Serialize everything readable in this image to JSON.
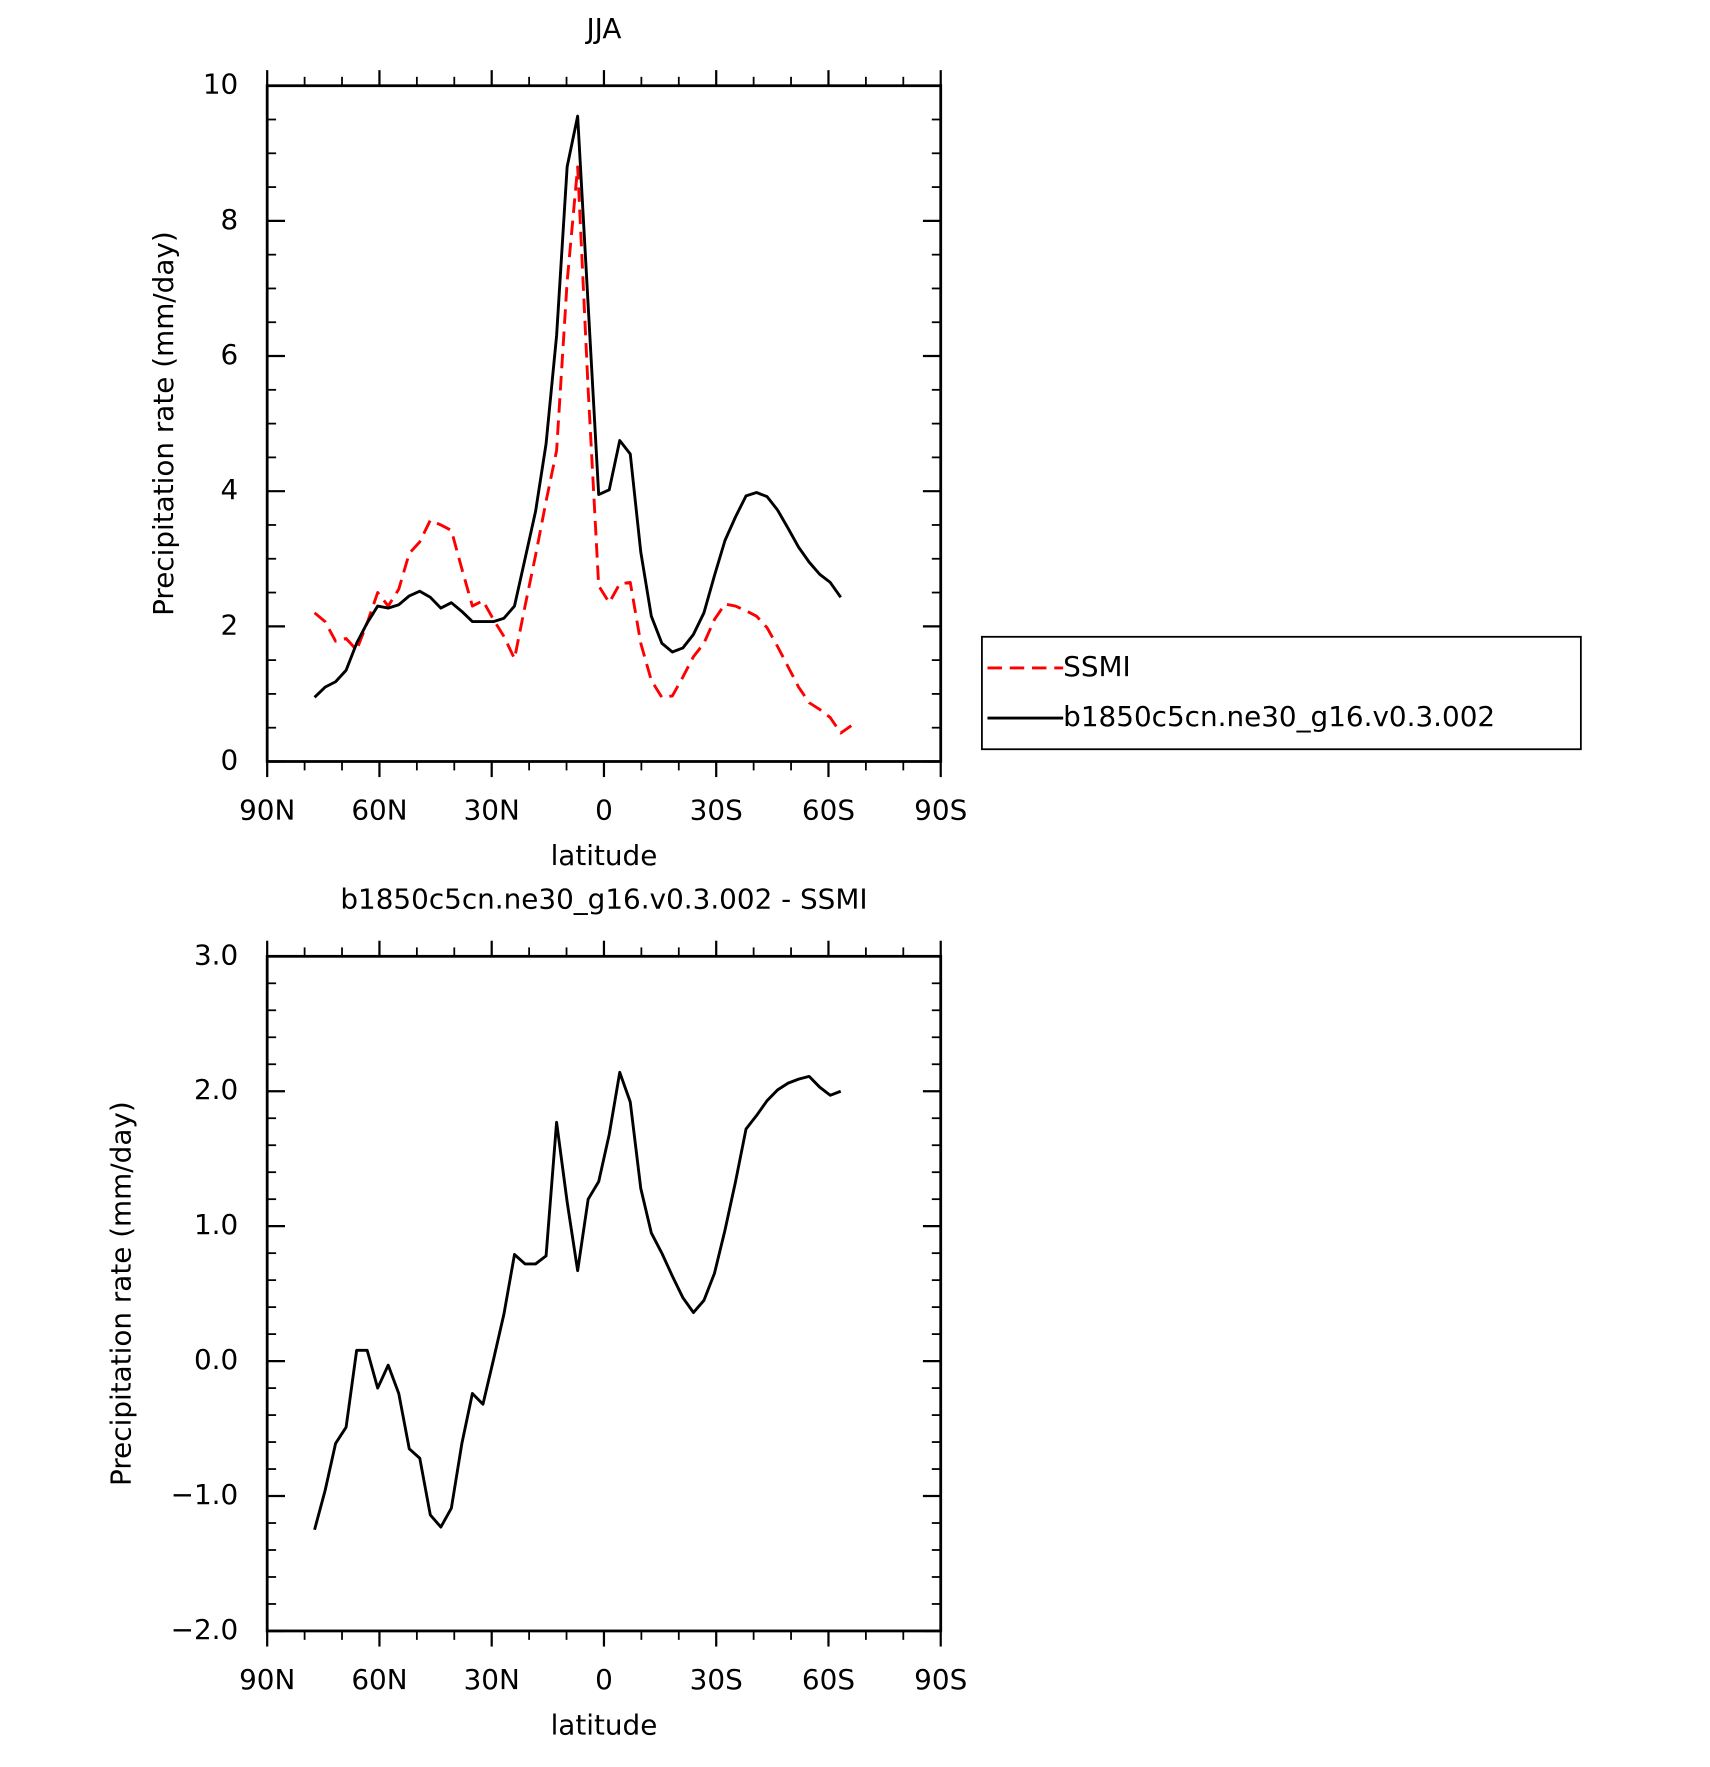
{
  "chart_data": [
    {
      "type": "line",
      "title": "JJA",
      "x_label": "latitude",
      "y_label": "Precipitation rate (mm/day)",
      "x": [
        77.34,
        74.53,
        71.72,
        68.91,
        66.09,
        63.28,
        60.47,
        57.66,
        54.84,
        52.03,
        49.22,
        46.41,
        43.59,
        40.78,
        37.97,
        35.16,
        32.34,
        29.53,
        26.72,
        23.91,
        21.09,
        18.28,
        15.47,
        12.66,
        9.84,
        7.03,
        4.22,
        1.41,
        -1.41,
        -4.22,
        -7.03,
        -9.84,
        -12.66,
        -15.47,
        -18.28,
        -21.09,
        -23.91,
        -26.72,
        -29.53,
        -32.34,
        -35.16,
        -37.97,
        -40.78,
        -43.59,
        -46.41,
        -49.22,
        -52.03,
        -54.84,
        -57.66,
        -60.47,
        -63.28,
        -66.09
      ],
      "series": [
        {
          "name": "SSMI",
          "color": "#ff0000",
          "dashed": true,
          "values": [
            2.2,
            2.07,
            1.78,
            1.82,
            1.65,
            2.05,
            2.5,
            2.3,
            2.55,
            3.08,
            3.25,
            3.57,
            3.5,
            3.42,
            2.85,
            2.3,
            2.38,
            2.1,
            1.85,
            1.52,
            2.3,
            3.05,
            3.85,
            4.6,
            7.1,
            8.8,
            5.5,
            2.6,
            2.35,
            2.63,
            2.65,
            1.75,
            1.2,
            0.95,
            0.97,
            1.25,
            1.55,
            1.75,
            2.1,
            2.33,
            2.3,
            2.23,
            2.15,
            1.98,
            1.7,
            1.4,
            1.1,
            0.87,
            0.77,
            0.65,
            0.42,
            0.53
          ]
        },
        {
          "name": "b1850c5cn.ne30_g16.v0.3.002",
          "color": "#000000",
          "dashed": false,
          "values": [
            0.95,
            1.1,
            1.18,
            1.35,
            1.75,
            2.05,
            2.3,
            2.27,
            2.32,
            2.45,
            2.52,
            2.43,
            2.27,
            2.35,
            2.22,
            2.07,
            2.07,
            2.07,
            2.12,
            2.3,
            3.0,
            3.7,
            4.7,
            6.3,
            8.8,
            9.55,
            6.75,
            3.95,
            4.02,
            4.75,
            4.55,
            3.1,
            2.15,
            1.75,
            1.62,
            1.68,
            1.88,
            2.2,
            2.75,
            3.27,
            3.62,
            3.93,
            3.98,
            3.92,
            3.72,
            3.45,
            3.17,
            2.95,
            2.77,
            2.65,
            2.43,
            null
          ]
        }
      ],
      "xlim": [
        90,
        -90
      ],
      "xticks": [
        {
          "value": 90,
          "label": "90N"
        },
        {
          "value": 60,
          "label": "60N"
        },
        {
          "value": 30,
          "label": "30N"
        },
        0,
        {
          "value": -30,
          "label": "30S"
        },
        {
          "value": -60,
          "label": "60S"
        },
        {
          "value": -90,
          "label": "90S"
        }
      ],
      "xminorticks": [
        80,
        70,
        50,
        40,
        20,
        10,
        -10,
        -20,
        -40,
        -50,
        -70,
        -80
      ],
      "ylim": [
        0,
        10
      ],
      "yticks": [
        0,
        2,
        4,
        6,
        8,
        10
      ],
      "yminorticks": [
        0.5,
        1,
        1.5,
        2.5,
        3,
        3.5,
        4.5,
        5,
        5.5,
        6.5,
        7,
        7.5,
        8.5,
        9,
        9.5
      ],
      "legend": "right"
    },
    {
      "type": "line",
      "title": "b1850c5cn.ne30_g16.v0.3.002 - SSMI",
      "x_label": "latitude",
      "y_label": "Precipitation rate (mm/day)",
      "x": [
        77.34,
        74.53,
        71.72,
        68.91,
        66.09,
        63.28,
        60.47,
        57.66,
        54.84,
        52.03,
        49.22,
        46.41,
        43.59,
        40.78,
        37.97,
        35.16,
        32.34,
        29.53,
        26.72,
        23.91,
        21.09,
        18.28,
        15.47,
        12.66,
        9.84,
        7.03,
        4.22,
        1.41,
        -1.41,
        -4.22,
        -7.03,
        -9.84,
        -12.66,
        -15.47,
        -18.28,
        -21.09,
        -23.91,
        -26.72,
        -29.53,
        -32.34,
        -35.16,
        -37.97,
        -40.78,
        -43.59,
        -46.41,
        -49.22,
        -52.03,
        -54.84,
        -57.66,
        -60.47,
        -63.28,
        -66.09
      ],
      "series": [
        {
          "color": "#000000",
          "dashed": false,
          "values": [
            -1.25,
            -0.96,
            -0.61,
            -0.49,
            0.08,
            0.08,
            -0.2,
            -0.03,
            -0.24,
            -0.65,
            -0.72,
            -1.14,
            -1.23,
            -1.09,
            -0.61,
            -0.24,
            -0.32,
            0.01,
            0.35,
            0.79,
            0.72,
            0.72,
            0.78,
            1.77,
            1.18,
            0.67,
            1.2,
            1.33,
            1.68,
            2.14,
            1.92,
            1.28,
            0.95,
            0.8,
            0.63,
            0.47,
            0.36,
            0.45,
            0.65,
            0.97,
            1.33,
            1.72,
            1.82,
            1.93,
            2.01,
            2.06,
            2.09,
            2.11,
            2.03,
            1.97,
            2.0,
            null
          ]
        }
      ],
      "xlim": [
        90,
        -90
      ],
      "xticks": [
        {
          "value": 90,
          "label": "90N"
        },
        {
          "value": 60,
          "label": "60N"
        },
        {
          "value": 30,
          "label": "30N"
        },
        0,
        {
          "value": -30,
          "label": "30S"
        },
        {
          "value": -60,
          "label": "60S"
        },
        {
          "value": -90,
          "label": "90S"
        }
      ],
      "xminorticks": [
        80,
        70,
        50,
        40,
        20,
        10,
        -10,
        -20,
        -40,
        -50,
        -70,
        -80
      ],
      "ylim": [
        -2,
        3
      ],
      "yticks": [
        {
          "value": -2,
          "label": "−2.0"
        },
        {
          "value": -1,
          "label": "−1.0"
        },
        {
          "value": 0,
          "label": "0.0"
        },
        {
          "value": 1,
          "label": "1.0"
        },
        {
          "value": 2,
          "label": "2.0"
        },
        {
          "value": 3,
          "label": "3.0"
        }
      ],
      "yminorticks": [
        -1.8,
        -1.6,
        -1.4,
        -1.2,
        -0.8,
        -0.6,
        -0.4,
        -0.2,
        0.2,
        0.4,
        0.6,
        0.8,
        1.2,
        1.4,
        1.6,
        1.8,
        2.2,
        2.4,
        2.6,
        2.8
      ]
    }
  ]
}
